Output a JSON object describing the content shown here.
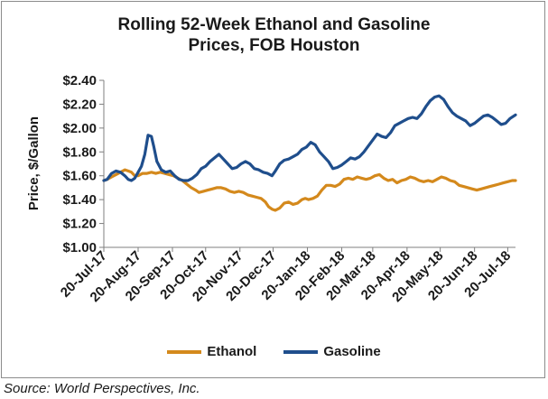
{
  "chart_data": {
    "type": "line",
    "title_line1": "Rolling 52-Week Ethanol and Gasoline",
    "title_line2": "Prices, FOB Houston",
    "ylabel": "Price, $/Gallon",
    "xlabel": "",
    "ylim": [
      1.0,
      2.4
    ],
    "yticks": [
      "$1.00",
      "$1.20",
      "$1.40",
      "$1.60",
      "$1.80",
      "$2.00",
      "$2.20",
      "$2.40"
    ],
    "xlim": [
      "2017-07-20",
      "2018-07-27"
    ],
    "xticks": [
      {
        "date": "2017-07-20",
        "label": "20-Jul-17"
      },
      {
        "date": "2017-08-20",
        "label": "20-Aug-17"
      },
      {
        "date": "2017-09-20",
        "label": "20-Sep-17"
      },
      {
        "date": "2017-10-20",
        "label": "20-Oct-17"
      },
      {
        "date": "2017-11-20",
        "label": "20-Nov-17"
      },
      {
        "date": "2017-12-20",
        "label": "20-Dec-17"
      },
      {
        "date": "2018-01-20",
        "label": "20-Jan-18"
      },
      {
        "date": "2018-02-20",
        "label": "20-Feb-18"
      },
      {
        "date": "2018-03-20",
        "label": "20-Mar-18"
      },
      {
        "date": "2018-04-20",
        "label": "20-Apr-18"
      },
      {
        "date": "2018-05-20",
        "label": "20-May-18"
      },
      {
        "date": "2018-06-20",
        "label": "20-Jun-18"
      },
      {
        "date": "2018-07-20",
        "label": "20-Jul-18"
      }
    ],
    "grid": false,
    "legend_position": "bottom",
    "series": [
      {
        "name": "Ethanol",
        "color": "#d4891c",
        "points": [
          [
            "2017-07-20",
            1.56
          ],
          [
            "2017-07-23",
            1.57
          ],
          [
            "2017-07-27",
            1.59
          ],
          [
            "2017-07-31",
            1.61
          ],
          [
            "2017-08-04",
            1.63
          ],
          [
            "2017-08-08",
            1.65
          ],
          [
            "2017-08-11",
            1.64
          ],
          [
            "2017-08-14",
            1.63
          ],
          [
            "2017-08-17",
            1.6
          ],
          [
            "2017-08-20",
            1.6
          ],
          [
            "2017-08-24",
            1.62
          ],
          [
            "2017-08-28",
            1.62
          ],
          [
            "2017-09-01",
            1.63
          ],
          [
            "2017-09-05",
            1.62
          ],
          [
            "2017-09-09",
            1.63
          ],
          [
            "2017-09-13",
            1.62
          ],
          [
            "2017-09-17",
            1.61
          ],
          [
            "2017-09-21",
            1.6
          ],
          [
            "2017-09-25",
            1.58
          ],
          [
            "2017-09-29",
            1.56
          ],
          [
            "2017-10-03",
            1.53
          ],
          [
            "2017-10-07",
            1.5
          ],
          [
            "2017-10-11",
            1.48
          ],
          [
            "2017-10-14",
            1.46
          ],
          [
            "2017-10-18",
            1.47
          ],
          [
            "2017-10-22",
            1.48
          ],
          [
            "2017-10-26",
            1.49
          ],
          [
            "2017-10-30",
            1.5
          ],
          [
            "2017-11-03",
            1.5
          ],
          [
            "2017-11-07",
            1.49
          ],
          [
            "2017-11-11",
            1.47
          ],
          [
            "2017-11-15",
            1.46
          ],
          [
            "2017-11-19",
            1.47
          ],
          [
            "2017-11-23",
            1.46
          ],
          [
            "2017-11-27",
            1.44
          ],
          [
            "2017-12-01",
            1.43
          ],
          [
            "2017-12-05",
            1.42
          ],
          [
            "2017-12-09",
            1.41
          ],
          [
            "2017-12-13",
            1.38
          ],
          [
            "2017-12-16",
            1.34
          ],
          [
            "2017-12-19",
            1.32
          ],
          [
            "2017-12-22",
            1.31
          ],
          [
            "2017-12-26",
            1.33
          ],
          [
            "2017-12-30",
            1.37
          ],
          [
            "2018-01-03",
            1.38
          ],
          [
            "2018-01-07",
            1.36
          ],
          [
            "2018-01-11",
            1.37
          ],
          [
            "2018-01-15",
            1.4
          ],
          [
            "2018-01-18",
            1.41
          ],
          [
            "2018-01-21",
            1.4
          ],
          [
            "2018-01-25",
            1.41
          ],
          [
            "2018-01-29",
            1.43
          ],
          [
            "2018-02-02",
            1.48
          ],
          [
            "2018-02-06",
            1.52
          ],
          [
            "2018-02-10",
            1.52
          ],
          [
            "2018-02-14",
            1.51
          ],
          [
            "2018-02-18",
            1.53
          ],
          [
            "2018-02-22",
            1.57
          ],
          [
            "2018-02-26",
            1.58
          ],
          [
            "2018-03-02",
            1.57
          ],
          [
            "2018-03-06",
            1.59
          ],
          [
            "2018-03-10",
            1.58
          ],
          [
            "2018-03-14",
            1.57
          ],
          [
            "2018-03-18",
            1.58
          ],
          [
            "2018-03-22",
            1.6
          ],
          [
            "2018-03-26",
            1.61
          ],
          [
            "2018-03-30",
            1.58
          ],
          [
            "2018-04-03",
            1.56
          ],
          [
            "2018-04-07",
            1.57
          ],
          [
            "2018-04-11",
            1.54
          ],
          [
            "2018-04-15",
            1.56
          ],
          [
            "2018-04-19",
            1.57
          ],
          [
            "2018-04-23",
            1.59
          ],
          [
            "2018-04-27",
            1.58
          ],
          [
            "2018-05-01",
            1.56
          ],
          [
            "2018-05-05",
            1.55
          ],
          [
            "2018-05-09",
            1.56
          ],
          [
            "2018-05-13",
            1.55
          ],
          [
            "2018-05-17",
            1.57
          ],
          [
            "2018-05-21",
            1.59
          ],
          [
            "2018-05-25",
            1.58
          ],
          [
            "2018-05-29",
            1.56
          ],
          [
            "2018-06-02",
            1.55
          ],
          [
            "2018-06-06",
            1.52
          ],
          [
            "2018-06-10",
            1.51
          ],
          [
            "2018-06-14",
            1.5
          ],
          [
            "2018-06-18",
            1.49
          ],
          [
            "2018-06-22",
            1.48
          ],
          [
            "2018-06-26",
            1.49
          ],
          [
            "2018-06-30",
            1.5
          ],
          [
            "2018-07-04",
            1.51
          ],
          [
            "2018-07-08",
            1.52
          ],
          [
            "2018-07-12",
            1.53
          ],
          [
            "2018-07-16",
            1.54
          ],
          [
            "2018-07-20",
            1.55
          ],
          [
            "2018-07-24",
            1.56
          ],
          [
            "2018-07-27",
            1.56
          ]
        ]
      },
      {
        "name": "Gasoline",
        "color": "#1f4e8c",
        "points": [
          [
            "2017-07-20",
            1.56
          ],
          [
            "2017-07-23",
            1.57
          ],
          [
            "2017-07-27",
            1.62
          ],
          [
            "2017-07-31",
            1.64
          ],
          [
            "2017-08-04",
            1.63
          ],
          [
            "2017-08-08",
            1.6
          ],
          [
            "2017-08-11",
            1.57
          ],
          [
            "2017-08-14",
            1.56
          ],
          [
            "2017-08-17",
            1.58
          ],
          [
            "2017-08-20",
            1.63
          ],
          [
            "2017-08-23",
            1.68
          ],
          [
            "2017-08-26",
            1.78
          ],
          [
            "2017-08-29",
            1.94
          ],
          [
            "2017-09-01",
            1.93
          ],
          [
            "2017-09-03",
            1.85
          ],
          [
            "2017-09-06",
            1.72
          ],
          [
            "2017-09-10",
            1.65
          ],
          [
            "2017-09-14",
            1.63
          ],
          [
            "2017-09-18",
            1.64
          ],
          [
            "2017-09-22",
            1.6
          ],
          [
            "2017-09-26",
            1.57
          ],
          [
            "2017-09-30",
            1.56
          ],
          [
            "2017-10-04",
            1.56
          ],
          [
            "2017-10-08",
            1.58
          ],
          [
            "2017-10-12",
            1.61
          ],
          [
            "2017-10-16",
            1.66
          ],
          [
            "2017-10-20",
            1.68
          ],
          [
            "2017-10-24",
            1.72
          ],
          [
            "2017-10-28",
            1.75
          ],
          [
            "2017-11-01",
            1.78
          ],
          [
            "2017-11-05",
            1.74
          ],
          [
            "2017-11-09",
            1.7
          ],
          [
            "2017-11-13",
            1.66
          ],
          [
            "2017-11-17",
            1.67
          ],
          [
            "2017-11-21",
            1.7
          ],
          [
            "2017-11-25",
            1.72
          ],
          [
            "2017-11-29",
            1.7
          ],
          [
            "2017-12-03",
            1.66
          ],
          [
            "2017-12-07",
            1.65
          ],
          [
            "2017-12-11",
            1.63
          ],
          [
            "2017-12-15",
            1.62
          ],
          [
            "2017-12-19",
            1.6
          ],
          [
            "2017-12-22",
            1.64
          ],
          [
            "2017-12-26",
            1.7
          ],
          [
            "2017-12-30",
            1.73
          ],
          [
            "2018-01-03",
            1.74
          ],
          [
            "2018-01-07",
            1.76
          ],
          [
            "2018-01-11",
            1.78
          ],
          [
            "2018-01-15",
            1.82
          ],
          [
            "2018-01-19",
            1.84
          ],
          [
            "2018-01-23",
            1.88
          ],
          [
            "2018-01-27",
            1.86
          ],
          [
            "2018-01-31",
            1.8
          ],
          [
            "2018-02-04",
            1.76
          ],
          [
            "2018-02-08",
            1.72
          ],
          [
            "2018-02-12",
            1.66
          ],
          [
            "2018-02-16",
            1.67
          ],
          [
            "2018-02-20",
            1.69
          ],
          [
            "2018-02-24",
            1.72
          ],
          [
            "2018-02-28",
            1.75
          ],
          [
            "2018-03-04",
            1.74
          ],
          [
            "2018-03-08",
            1.76
          ],
          [
            "2018-03-12",
            1.8
          ],
          [
            "2018-03-16",
            1.85
          ],
          [
            "2018-03-20",
            1.9
          ],
          [
            "2018-03-24",
            1.95
          ],
          [
            "2018-03-28",
            1.93
          ],
          [
            "2018-04-01",
            1.92
          ],
          [
            "2018-04-05",
            1.96
          ],
          [
            "2018-04-09",
            2.02
          ],
          [
            "2018-04-13",
            2.04
          ],
          [
            "2018-04-17",
            2.06
          ],
          [
            "2018-04-21",
            2.08
          ],
          [
            "2018-04-25",
            2.09
          ],
          [
            "2018-04-29",
            2.08
          ],
          [
            "2018-05-03",
            2.12
          ],
          [
            "2018-05-07",
            2.18
          ],
          [
            "2018-05-11",
            2.23
          ],
          [
            "2018-05-15",
            2.26
          ],
          [
            "2018-05-19",
            2.27
          ],
          [
            "2018-05-23",
            2.24
          ],
          [
            "2018-05-27",
            2.18
          ],
          [
            "2018-05-31",
            2.13
          ],
          [
            "2018-06-04",
            2.1
          ],
          [
            "2018-06-08",
            2.08
          ],
          [
            "2018-06-12",
            2.06
          ],
          [
            "2018-06-16",
            2.02
          ],
          [
            "2018-06-20",
            2.04
          ],
          [
            "2018-06-24",
            2.07
          ],
          [
            "2018-06-28",
            2.1
          ],
          [
            "2018-07-02",
            2.11
          ],
          [
            "2018-07-06",
            2.09
          ],
          [
            "2018-07-10",
            2.06
          ],
          [
            "2018-07-14",
            2.03
          ],
          [
            "2018-07-18",
            2.04
          ],
          [
            "2018-07-22",
            2.08
          ],
          [
            "2018-07-27",
            2.11
          ]
        ]
      }
    ]
  },
  "source": "Source: World Perspectives, Inc."
}
